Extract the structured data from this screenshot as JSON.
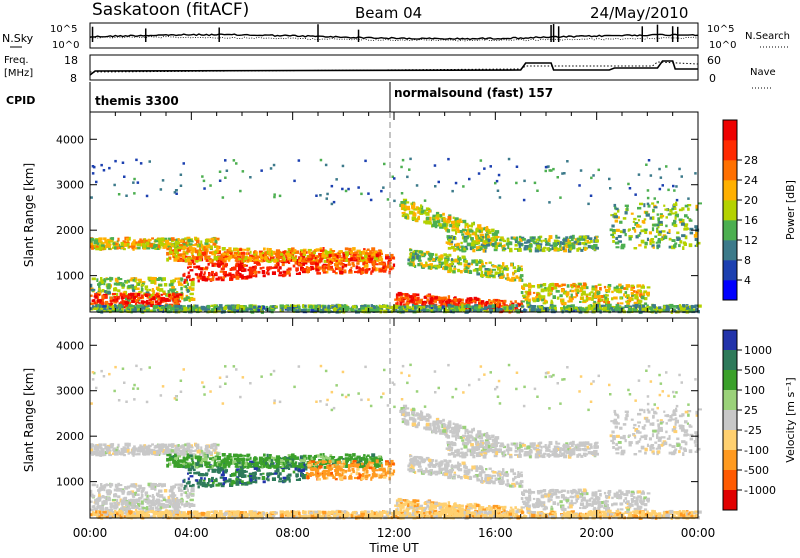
{
  "header": {
    "station": "Saskatoon (fitACF)",
    "beam": "Beam 04",
    "date": "24/May/2010"
  },
  "top_panels": {
    "nsky_label": "N.Sky",
    "nsky_ticks": [
      "10^5",
      "10^0"
    ],
    "nsearch_label": "N.Search",
    "nsearch_ticks": [
      "10^5",
      "10^0"
    ],
    "freq_label_1": "Freq.",
    "freq_label_2": "[MHz]",
    "freq_ticks": [
      "18",
      "8"
    ],
    "nave_label": "Nave",
    "nave_ticks": [
      "60",
      "0"
    ],
    "cpid_label": "CPID",
    "cpid_segments": [
      {
        "label": "themis 3300",
        "start_hour": 0
      },
      {
        "label": "normalsound (fast) 157",
        "start_hour": 12
      }
    ]
  },
  "chart_data": [
    {
      "type": "heatmap",
      "title": "",
      "xlabel": "",
      "ylabel": "Slant Range [km]",
      "xlim": [
        0,
        24
      ],
      "ylim": [
        200,
        4600
      ],
      "x_ticks": [
        "00:00",
        "04:00",
        "08:00",
        "12:00",
        "16:00",
        "20:00",
        "00:00"
      ],
      "y_ticks": [
        "1000",
        "2000",
        "3000",
        "4000"
      ],
      "colorbar_label": "Power [dB]",
      "colorbar_ticks": [
        "4",
        "8",
        "12",
        "16",
        "20",
        "24",
        "28"
      ],
      "colorbar_colors": [
        "#0000ff",
        "#1c40b0",
        "#3c7a8a",
        "#4caf50",
        "#b4d200",
        "#ffb000",
        "#ff7000",
        "#ff2a00",
        "#ee0000"
      ]
    },
    {
      "type": "heatmap",
      "title": "",
      "xlabel": "Time UT",
      "ylabel": "Slant Range [km]",
      "xlim": [
        0,
        24
      ],
      "ylim": [
        200,
        4600
      ],
      "x_ticks": [
        "00:00",
        "04:00",
        "08:00",
        "12:00",
        "16:00",
        "20:00",
        "00:00"
      ],
      "y_ticks": [
        "1000",
        "2000",
        "3000",
        "4000"
      ],
      "colorbar_label": "Velocity [m s⁻¹]",
      "colorbar_ticks": [
        "1000",
        "500",
        "100",
        "25",
        "-25",
        "-100",
        "-500",
        "-1000"
      ],
      "colorbar_colors": [
        "#2233aa",
        "#2e7a5a",
        "#3aa02a",
        "#9bd27a",
        "#c8c8c8",
        "#ffd070",
        "#ff9a20",
        "#ff5a00",
        "#e00000"
      ]
    }
  ]
}
